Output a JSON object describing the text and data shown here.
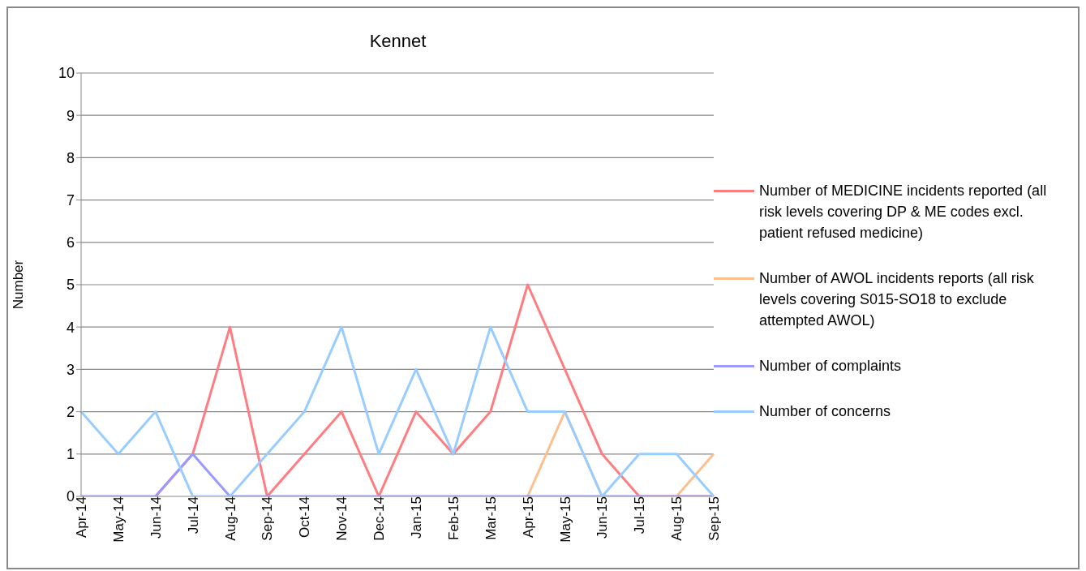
{
  "chart_data": {
    "type": "line",
    "title": "Kennet",
    "ylabel": "Number",
    "categories": [
      "Apr-14",
      "May-14",
      "Jun-14",
      "Jul-14",
      "Aug-14",
      "Sep-14",
      "Oct-14",
      "Nov-14",
      "Dec-14",
      "Jan-15",
      "Feb-15",
      "Mar-15",
      "Apr-15",
      "May-15",
      "Jun-15",
      "Jul-15",
      "Aug-15",
      "Sep-15"
    ],
    "series": [
      {
        "name": "Number of MEDICINE incidents reported (all risk levels covering DP & ME codes excl. patient refused medicine)",
        "color": "#ff7c80",
        "values": [
          null,
          null,
          0,
          1,
          4,
          0,
          1,
          2,
          0,
          2,
          1,
          2,
          5,
          3,
          1,
          0,
          0,
          0
        ]
      },
      {
        "name": "Number of AWOL incidents reports (all risk levels covering S015-SO18 to exclude attempted AWOL)",
        "color": "#fac090",
        "values": [
          null,
          null,
          null,
          null,
          null,
          null,
          null,
          null,
          null,
          null,
          null,
          null,
          0,
          2,
          0,
          null,
          0,
          1
        ]
      },
      {
        "name": "Number of complaints",
        "color": "#9999ff",
        "values": [
          0,
          0,
          0,
          1,
          0,
          0,
          0,
          0,
          0,
          0,
          0,
          0,
          0,
          0,
          0,
          0,
          0,
          0
        ]
      },
      {
        "name": "Number of concerns",
        "color": "#99ccff",
        "values": [
          2,
          1,
          2,
          0,
          0,
          1,
          2,
          4,
          1,
          3,
          1,
          4,
          2,
          2,
          0,
          1,
          1,
          0
        ]
      }
    ],
    "ylim": [
      0,
      10
    ],
    "yticks": [
      0,
      1,
      2,
      3,
      4,
      5,
      6,
      7,
      8,
      9,
      10
    ],
    "grid": "y",
    "legend": "right",
    "marker": "none",
    "line_style": "solid"
  }
}
